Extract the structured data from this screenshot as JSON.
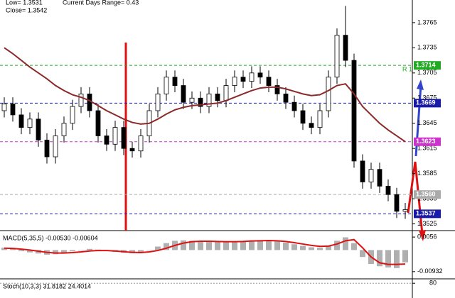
{
  "chart_data": {
    "type": "candlestick",
    "info": [
      "Low= 1.3531",
      "Current Days Range= 0.43",
      "Close= 1.3542"
    ],
    "ylim": [
      1.3517,
      1.3792
    ],
    "yticks": [
      1.3765,
      1.3735,
      1.3705,
      1.3675,
      1.3645,
      1.3615,
      1.3585,
      1.3555,
      1.3525
    ],
    "up_color": "#ffffff",
    "down_color": "#000000",
    "ma_color": "#8b2a2a",
    "open": [
      1.366,
      1.3668,
      1.3655,
      1.364,
      1.365,
      1.3625,
      1.3605,
      1.363,
      1.3645,
      1.3665,
      1.368,
      1.366,
      1.363,
      1.362,
      1.364,
      1.3615,
      1.3612,
      1.363,
      1.366,
      1.368,
      1.37,
      1.369,
      1.367,
      1.3675,
      1.3665,
      1.368,
      1.3672,
      1.369,
      1.37,
      1.3695,
      1.3705,
      1.37,
      1.369,
      1.368,
      1.367,
      1.366,
      1.3645,
      1.364,
      1.366,
      1.37,
      1.375,
      1.372,
      1.36,
      1.3575,
      1.359,
      1.357,
      1.356,
      1.354
    ],
    "high": [
      1.3676,
      1.3676,
      1.3663,
      1.3658,
      1.3658,
      1.3633,
      1.3638,
      1.3653,
      1.3673,
      1.3688,
      1.3688,
      1.3668,
      1.3638,
      1.3648,
      1.3648,
      1.3623,
      1.3638,
      1.3668,
      1.3688,
      1.3708,
      1.3708,
      1.3698,
      1.3683,
      1.3683,
      1.3688,
      1.3688,
      1.3698,
      1.3708,
      1.3708,
      1.3713,
      1.3713,
      1.3708,
      1.3698,
      1.3688,
      1.3678,
      1.3668,
      1.3653,
      1.3668,
      1.3708,
      1.3758,
      1.3785,
      1.3728,
      1.3608,
      1.3598,
      1.3598,
      1.3578,
      1.3568,
      1.355
    ],
    "low": [
      1.3652,
      1.3647,
      1.3632,
      1.3632,
      1.3617,
      1.3597,
      1.3597,
      1.3622,
      1.3637,
      1.3657,
      1.3652,
      1.3622,
      1.3612,
      1.3612,
      1.3607,
      1.3604,
      1.3604,
      1.3622,
      1.3652,
      1.3672,
      1.3682,
      1.3662,
      1.3662,
      1.3657,
      1.3657,
      1.3664,
      1.3664,
      1.3682,
      1.3687,
      1.3687,
      1.3692,
      1.3682,
      1.3672,
      1.3662,
      1.3652,
      1.3637,
      1.3632,
      1.3632,
      1.3652,
      1.3692,
      1.3712,
      1.3592,
      1.3567,
      1.3567,
      1.3562,
      1.3552,
      1.3532,
      1.3531
    ],
    "close": [
      1.3668,
      1.3655,
      1.364,
      1.365,
      1.3625,
      1.3605,
      1.363,
      1.3645,
      1.3665,
      1.368,
      1.366,
      1.363,
      1.362,
      1.364,
      1.3615,
      1.3612,
      1.363,
      1.366,
      1.368,
      1.37,
      1.369,
      1.367,
      1.3675,
      1.3665,
      1.368,
      1.3672,
      1.369,
      1.37,
      1.3695,
      1.3705,
      1.37,
      1.369,
      1.368,
      1.367,
      1.366,
      1.3645,
      1.364,
      1.366,
      1.37,
      1.375,
      1.372,
      1.36,
      1.3575,
      1.359,
      1.357,
      1.356,
      1.354,
      1.3542
    ],
    "ma": [
      1.3735,
      1.3728,
      1.372,
      1.3712,
      1.3705,
      1.3698,
      1.369,
      1.3684,
      1.3679,
      1.3676,
      1.3672,
      1.3666,
      1.366,
      1.3655,
      1.365,
      1.3646,
      1.3644,
      1.3645,
      1.365,
      1.3656,
      1.3661,
      1.3664,
      1.3666,
      1.3667,
      1.3668,
      1.3669,
      1.3672,
      1.3676,
      1.368,
      1.3684,
      1.3687,
      1.3688,
      1.3688,
      1.3686,
      1.3683,
      1.368,
      1.3678,
      1.3679,
      1.3684,
      1.369,
      1.3692,
      1.368,
      1.3665,
      1.3655,
      1.3645,
      1.3637,
      1.363,
      1.3623
    ],
    "levels": [
      {
        "value": 1.3714,
        "label": "1.3714",
        "color": "#22aa22",
        "note": "R 1"
      },
      {
        "value": 1.3669,
        "label": "1.3669",
        "color": "#1a1aa8"
      },
      {
        "value": 1.3623,
        "label": "1.3623",
        "color": "#cc33cc"
      },
      {
        "value": 1.356,
        "label": "1.3560",
        "color": "#aaaaaa"
      },
      {
        "value": 1.3537,
        "label": "1.3537",
        "color": "#1a1aa8"
      }
    ],
    "macd": {
      "title": "MACD(5,35,5) -0.00530 -0.00604",
      "ylim": [
        -0.01212,
        0.00809
      ],
      "yticks": [
        0.0056,
        -0.00932
      ],
      "hist_color": "#b0b0b0",
      "signal_color": "#dd1111",
      "histogram": [
        0.001,
        0.0005,
        -0.0005,
        -0.001,
        -0.0015,
        -0.002,
        -0.0018,
        -0.0012,
        -0.0005,
        0.0,
        0.0005,
        0.0002,
        -0.0003,
        -0.0008,
        -0.0012,
        -0.0014,
        -0.001,
        0.0,
        0.0015,
        0.003,
        0.004,
        0.0042,
        0.004,
        0.0038,
        0.0036,
        0.0035,
        0.0036,
        0.0038,
        0.004,
        0.0042,
        0.0043,
        0.0042,
        0.0038,
        0.0032,
        0.0025,
        0.0018,
        0.0012,
        0.001,
        0.002,
        0.004,
        0.0055,
        0.003,
        -0.003,
        -0.006,
        -0.007,
        -0.0075,
        -0.0078,
        -0.0053
      ],
      "signal": [
        0.0008,
        0.0007,
        0.0004,
        0.0,
        -0.0005,
        -0.001,
        -0.0013,
        -0.0013,
        -0.0011,
        -0.0008,
        -0.0004,
        -0.0002,
        -0.0002,
        -0.0004,
        -0.0007,
        -0.001,
        -0.0011,
        -0.0008,
        -0.0002,
        0.0008,
        0.002,
        0.003,
        0.0036,
        0.0038,
        0.0038,
        0.0037,
        0.0036,
        0.0036,
        0.0037,
        0.0039,
        0.004,
        0.0041,
        0.004,
        0.0037,
        0.0032,
        0.0026,
        0.002,
        0.0016,
        0.0017,
        0.0026,
        0.004,
        0.0045,
        0.001,
        -0.003,
        -0.0055,
        -0.0062,
        -0.0062,
        -0.00604
      ]
    },
    "stoch": {
      "title": "Stoch(10,3,3) 31.8182 24.4014",
      "ylim": [
        40,
        90
      ],
      "yticks": [
        80
      ]
    }
  }
}
